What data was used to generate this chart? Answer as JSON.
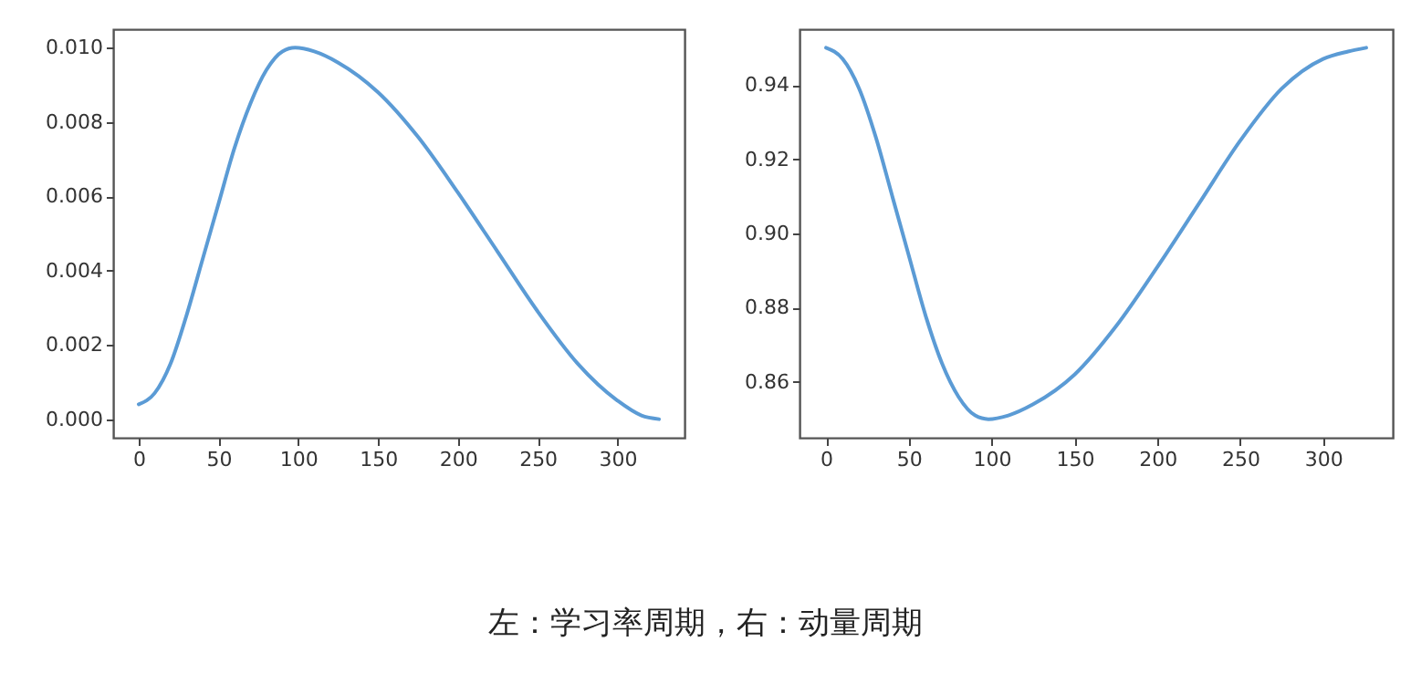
{
  "chart_data": [
    {
      "type": "line",
      "x": [
        0,
        10,
        20,
        30,
        40,
        50,
        60,
        70,
        80,
        90,
        98,
        110,
        125,
        150,
        175,
        200,
        225,
        250,
        275,
        300,
        315,
        326
      ],
      "series": [
        {
          "color": "#5b9bd5",
          "values": [
            0.0004,
            0.0007,
            0.0015,
            0.0028,
            0.0043,
            0.0058,
            0.0073,
            0.0085,
            0.0094,
            0.0099,
            0.01,
            0.0099,
            0.0096,
            0.0088,
            0.0076,
            0.0061,
            0.0045,
            0.0029,
            0.0015,
            0.0005,
            0.0001,
            0.0
          ]
        }
      ],
      "xlim": [
        -16,
        342
      ],
      "xticks": [
        0,
        50,
        100,
        150,
        200,
        250,
        300
      ],
      "ylim": [
        -0.0005,
        0.0105
      ],
      "yticks": [
        {
          "value": 0,
          "label": "0.000"
        },
        {
          "value": 0.002,
          "label": "0.002"
        },
        {
          "value": 0.004,
          "label": "0.004"
        },
        {
          "value": 0.006,
          "label": "0.006"
        },
        {
          "value": 0.008,
          "label": "0.008"
        },
        {
          "value": 0.01,
          "label": "0.010"
        }
      ],
      "grid": false,
      "annotations": [
        "左：学习率周期，右：动量周期"
      ]
    },
    {
      "type": "line",
      "x": [
        0,
        10,
        20,
        30,
        40,
        50,
        60,
        70,
        80,
        90,
        98,
        110,
        125,
        150,
        175,
        200,
        225,
        250,
        275,
        300,
        315,
        326
      ],
      "series": [
        {
          "color": "#5b9bd5",
          "values": [
            0.95,
            0.947,
            0.939,
            0.926,
            0.91,
            0.894,
            0.878,
            0.865,
            0.856,
            0.851,
            0.85,
            0.851,
            0.854,
            0.862,
            0.875,
            0.891,
            0.908,
            0.925,
            0.939,
            0.947,
            0.949,
            0.95
          ]
        }
      ],
      "xlim": [
        -16,
        342
      ],
      "xticks": [
        0,
        50,
        100,
        150,
        200,
        250,
        300
      ],
      "ylim": [
        0.845,
        0.955
      ],
      "yticks": [
        {
          "value": 0.86,
          "label": "0.86"
        },
        {
          "value": 0.88,
          "label": "0.88"
        },
        {
          "value": 0.9,
          "label": "0.90"
        },
        {
          "value": 0.92,
          "label": "0.92"
        },
        {
          "value": 0.94,
          "label": "0.94"
        }
      ],
      "grid": false
    }
  ]
}
